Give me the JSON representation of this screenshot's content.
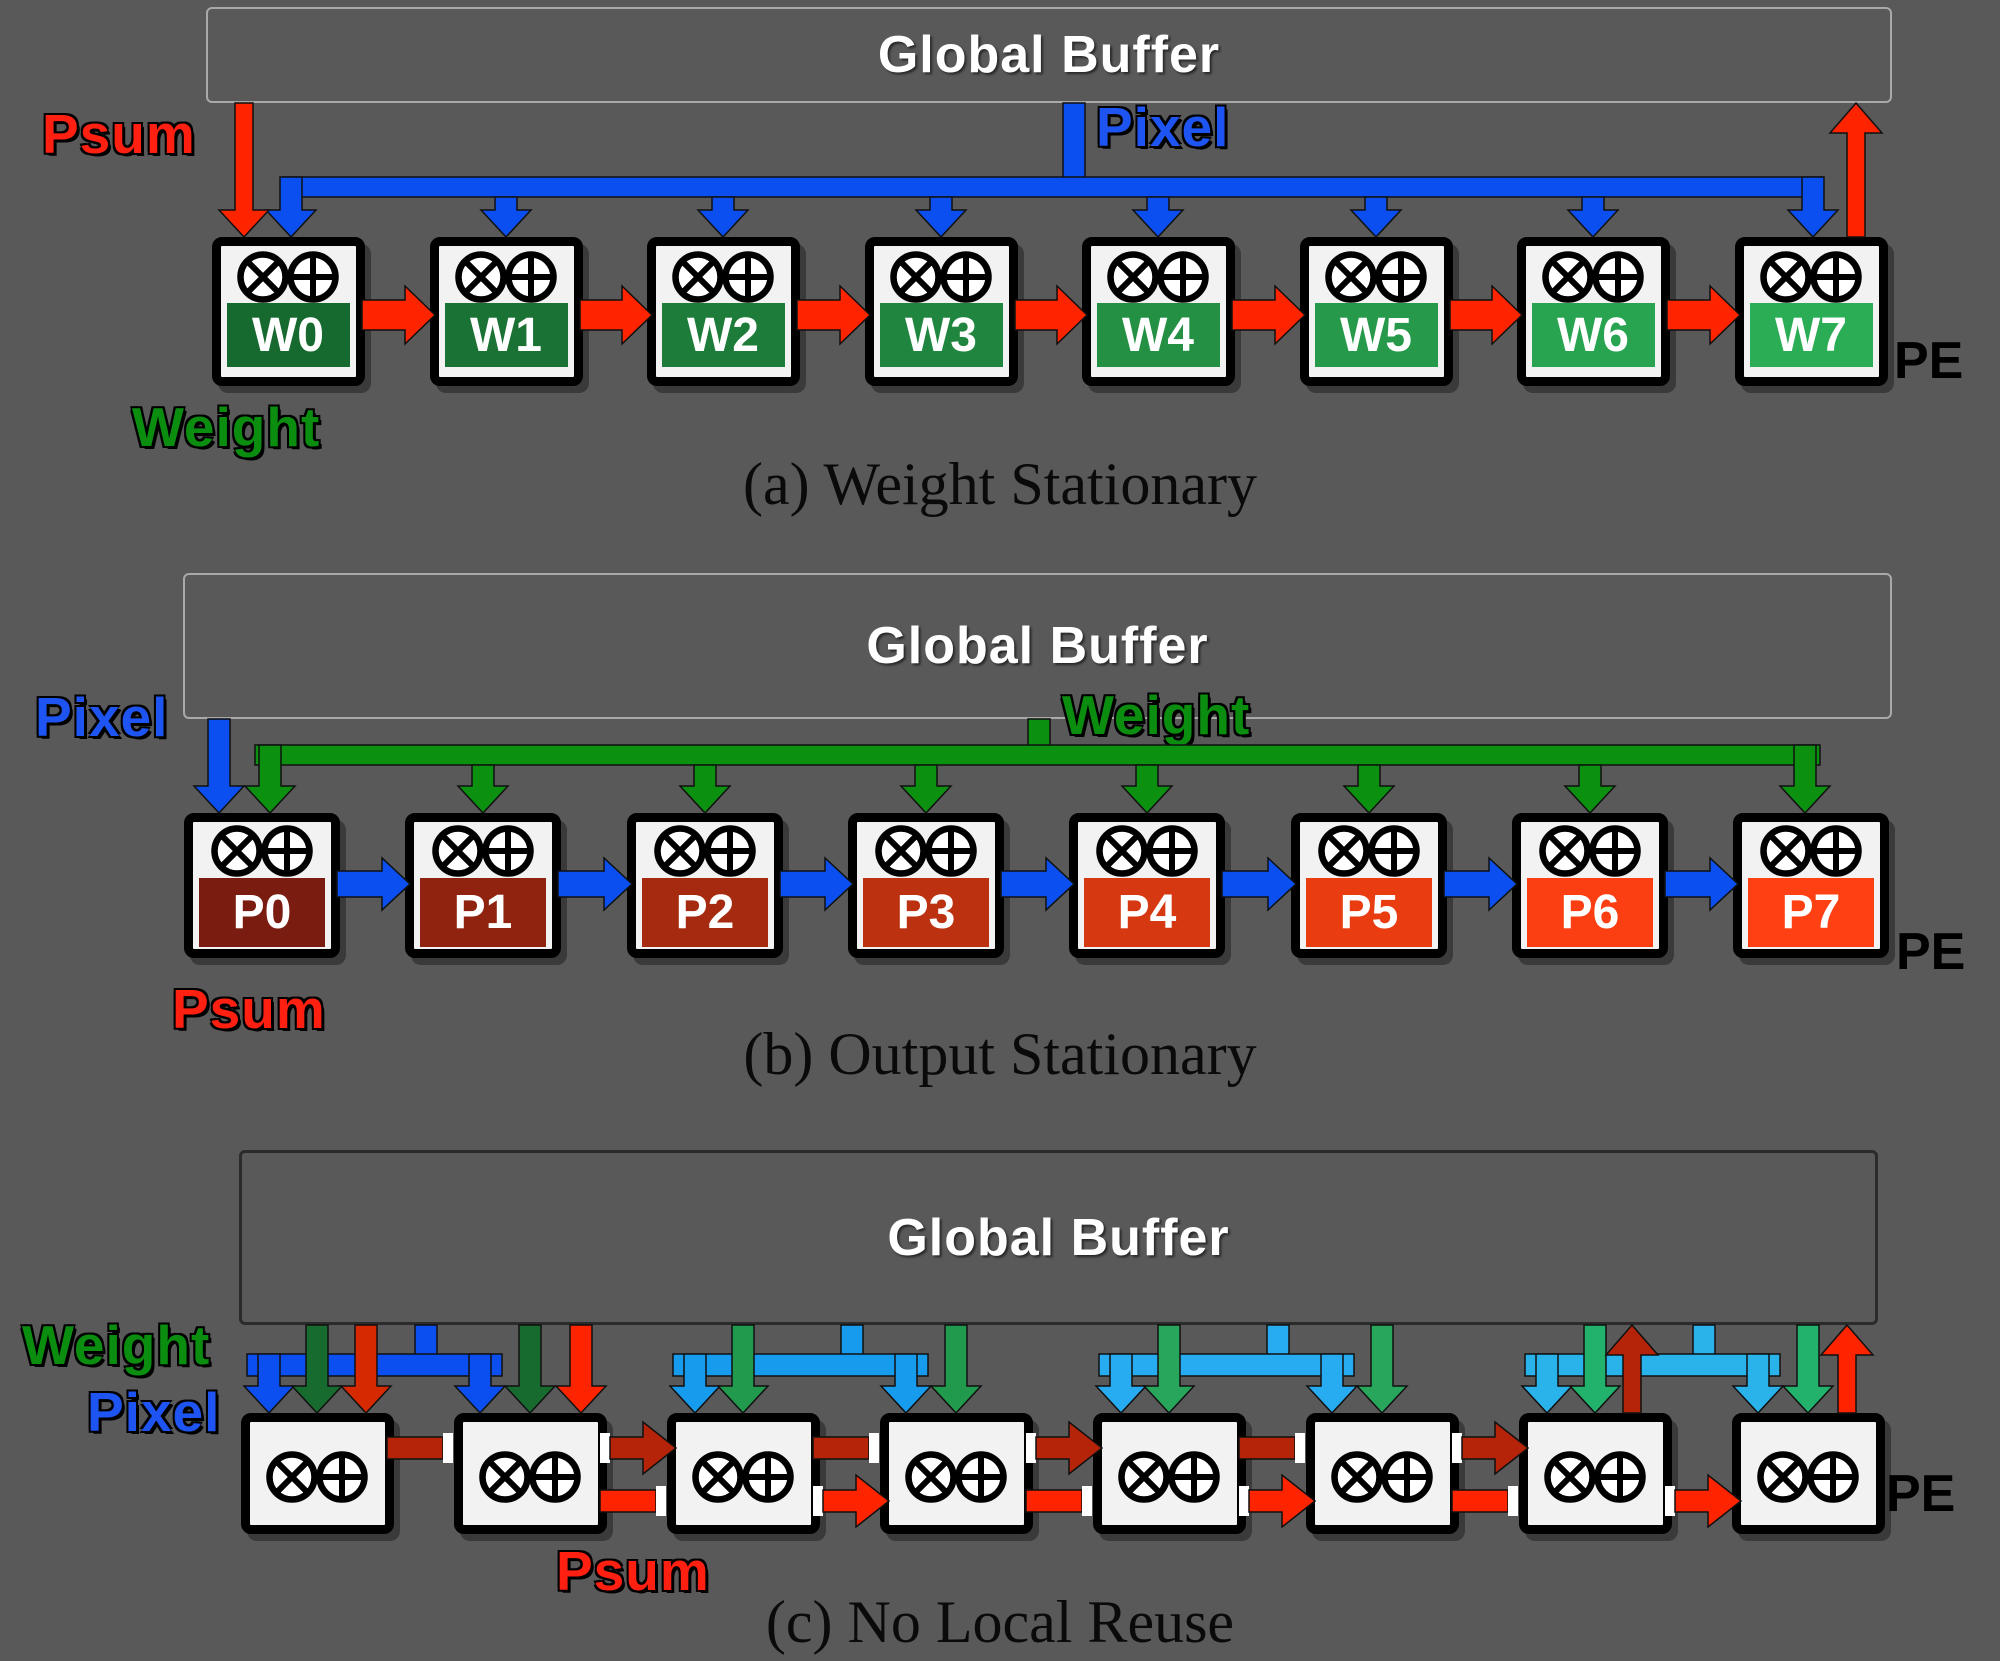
{
  "colors": {
    "background": "#595959",
    "box_fill": "#F2F2F2",
    "box_border": "#000000",
    "buffer_border_light": "#A9A9A9",
    "buffer_border_dark": "#2B2B2B",
    "buffer_text": "#FFFFFF",
    "red": "#FF2400",
    "mid_red": "#D62900",
    "dark_red": "#B52408",
    "red_label": "#FF2012",
    "blue": "#0B4FF0",
    "blue_label": "#1E55F2",
    "green": "#0C9010",
    "green_label": "#0B8E10",
    "socket_white": "#FFFFFF",
    "c_pair_blue": [
      "#0B4FF0",
      "#179BEC",
      "#27ACF2",
      "#2AB3EA"
    ],
    "c_pair_green": [
      "#176B2E",
      "#229A4E",
      "#28A75C",
      "#22B26B"
    ]
  },
  "sections": [
    {
      "key": "a",
      "buffer_label": "Global Buffer",
      "caption": "(a) Weight Stationary",
      "pe_tag": "PE",
      "flow_labels": {
        "psum": "Psum",
        "pixel": "Pixel",
        "weight": "Weight"
      },
      "pes": [
        {
          "label": "W0",
          "color": "#176A2F"
        },
        {
          "label": "W1",
          "color": "#1A7334"
        },
        {
          "label": "W2",
          "color": "#1D7C39"
        },
        {
          "label": "W3",
          "color": "#20853E"
        },
        {
          "label": "W4",
          "color": "#239044"
        },
        {
          "label": "W5",
          "color": "#269A4A"
        },
        {
          "label": "W6",
          "color": "#28A350"
        },
        {
          "label": "W7",
          "color": "#2BAD56"
        }
      ]
    },
    {
      "key": "b",
      "buffer_label": "Global Buffer",
      "caption": "(b) Output Stationary",
      "pe_tag": "PE",
      "flow_labels": {
        "pixel": "Pixel",
        "weight": "Weight",
        "psum": "Psum"
      },
      "pes": [
        {
          "label": "P0",
          "color": "#7B1C10"
        },
        {
          "label": "P1",
          "color": "#8F2310"
        },
        {
          "label": "P2",
          "color": "#A52A0F"
        },
        {
          "label": "P3",
          "color": "#BC3110"
        },
        {
          "label": "P4",
          "color": "#D63811"
        },
        {
          "label": "P5",
          "color": "#EA3C11"
        },
        {
          "label": "P6",
          "color": "#FB3F12"
        },
        {
          "label": "P7",
          "color": "#FF4013"
        }
      ]
    },
    {
      "key": "c",
      "buffer_label": "Global Buffer",
      "caption": "(c) No Local Reuse",
      "pe_tag": "PE",
      "flow_labels": {
        "weight": "Weight",
        "pixel": "Pixel",
        "psum": "Psum"
      },
      "pes": [
        {
          "label": ""
        },
        {
          "label": ""
        },
        {
          "label": ""
        },
        {
          "label": ""
        },
        {
          "label": ""
        },
        {
          "label": ""
        },
        {
          "label": ""
        },
        {
          "label": ""
        }
      ]
    }
  ]
}
